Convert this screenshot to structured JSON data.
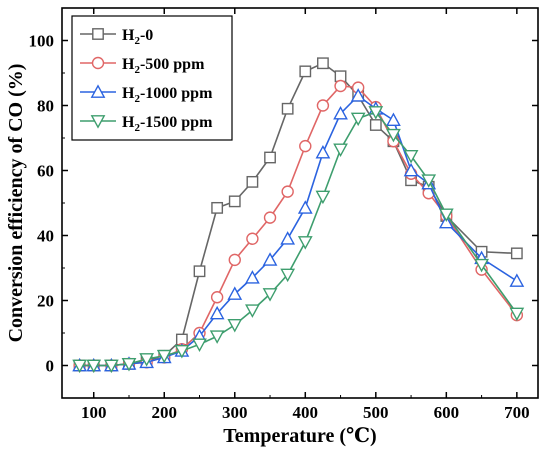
{
  "chart_data": {
    "type": "line",
    "xlabel": "Temperature (℃)",
    "ylabel": "Conversion efficiency of CO (%)",
    "xlim": [
      55,
      730
    ],
    "ylim": [
      -10,
      110
    ],
    "xticks": [
      100,
      200,
      300,
      400,
      500,
      600,
      700
    ],
    "yticks": [
      0,
      20,
      40,
      60,
      80,
      100
    ],
    "legend_position": "top-left",
    "grid": false,
    "series": [
      {
        "name": "H2-0",
        "legend_main": "H",
        "legend_sub": "2",
        "legend_rest": "-0",
        "color": "#666666",
        "marker": "square",
        "x": [
          80,
          100,
          125,
          150,
          175,
          200,
          225,
          250,
          275,
          300,
          325,
          350,
          375,
          400,
          425,
          450,
          475,
          500,
          525,
          550,
          575,
          600,
          650,
          700
        ],
        "y": [
          0,
          0,
          0,
          0.5,
          1.5,
          3,
          8,
          29,
          48.5,
          50.5,
          56.5,
          64,
          79,
          90.5,
          93,
          89,
          83,
          74,
          69,
          57,
          55,
          46,
          35,
          34.5
        ]
      },
      {
        "name": "H2-500 ppm",
        "legend_main": "H",
        "legend_sub": "2",
        "legend_rest": "-500 ppm",
        "color": "#e06666",
        "marker": "circle",
        "x": [
          80,
          100,
          125,
          150,
          175,
          200,
          225,
          250,
          275,
          300,
          325,
          350,
          375,
          400,
          425,
          450,
          475,
          500,
          525,
          550,
          575,
          600,
          650,
          700
        ],
        "y": [
          0,
          0,
          0,
          0.5,
          1,
          2.5,
          5,
          10,
          21,
          32.5,
          39,
          45.5,
          53.5,
          67.5,
          80,
          86,
          85.5,
          79.5,
          69,
          59,
          53,
          46,
          29.5,
          15.5
        ]
      },
      {
        "name": "H2-1000 ppm",
        "legend_main": "H",
        "legend_sub": "2",
        "legend_rest": "-1000 ppm",
        "color": "#2b63e0",
        "marker": "triangle-up",
        "x": [
          80,
          100,
          125,
          150,
          175,
          200,
          225,
          250,
          275,
          300,
          325,
          350,
          375,
          400,
          425,
          450,
          475,
          500,
          525,
          550,
          575,
          600,
          650,
          700
        ],
        "y": [
          0,
          0,
          0,
          0.5,
          1,
          2.5,
          4.5,
          9,
          16,
          22,
          27,
          32.5,
          39,
          48.5,
          65.5,
          77.5,
          83,
          79,
          75.5,
          60,
          56,
          44,
          33,
          26
        ]
      },
      {
        "name": "H2-1500 ppm",
        "legend_main": "H",
        "legend_sub": "2",
        "legend_rest": "-1500 ppm",
        "color": "#3e9e6e",
        "marker": "triangle-down",
        "x": [
          80,
          100,
          125,
          150,
          175,
          200,
          225,
          250,
          275,
          300,
          325,
          350,
          375,
          400,
          425,
          450,
          475,
          500,
          525,
          550,
          575,
          600,
          650,
          700
        ],
        "y": [
          0,
          0,
          0,
          0.5,
          2,
          3,
          4.5,
          6.5,
          9,
          12.5,
          17,
          22,
          28,
          38,
          52,
          66.5,
          76,
          78,
          71,
          64.5,
          57,
          46.5,
          31,
          16
        ]
      }
    ]
  }
}
